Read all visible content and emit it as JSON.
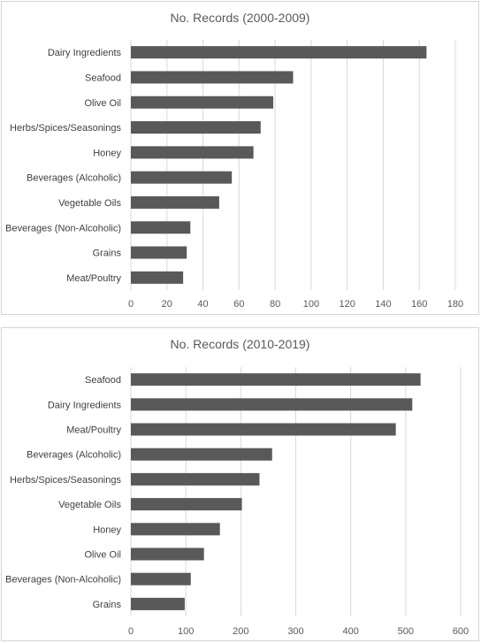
{
  "chart_data": [
    {
      "type": "bar",
      "orientation": "horizontal",
      "title": "No. Records (2000-2009)",
      "categories": [
        "Dairy Ingredients",
        "Seafood",
        "Olive Oil",
        "Herbs/Spices/Seasonings",
        "Honey",
        "Beverages (Alcoholic)",
        "Vegetable Oils",
        "Beverages (Non-Alcoholic)",
        "Grains",
        "Meat/Poultry"
      ],
      "values": [
        164,
        90,
        79,
        72,
        68,
        56,
        49,
        33,
        31,
        29
      ],
      "xlim": [
        0,
        180
      ],
      "xticks": [
        "0",
        "20",
        "40",
        "60",
        "80",
        "100",
        "120",
        "140",
        "160",
        "180"
      ],
      "grid": true,
      "bar_color": "#595959"
    },
    {
      "type": "bar",
      "orientation": "horizontal",
      "title": "No. Records (2010-2019)",
      "categories": [
        "Seafood",
        "Dairy Ingredients",
        "Meat/Poultry",
        "Beverages (Alcoholic)",
        "Herbs/Spices/Seasonings",
        "Vegetable Oils",
        "Honey",
        "Olive Oil",
        "Beverages (Non-Alcoholic)",
        "Grains"
      ],
      "values": [
        527,
        512,
        482,
        257,
        234,
        202,
        162,
        133,
        109,
        98
      ],
      "xlim": [
        0,
        600
      ],
      "xticks": [
        "0",
        "100",
        "200",
        "300",
        "400",
        "500",
        "600"
      ],
      "grid": true,
      "bar_color": "#595959"
    }
  ]
}
